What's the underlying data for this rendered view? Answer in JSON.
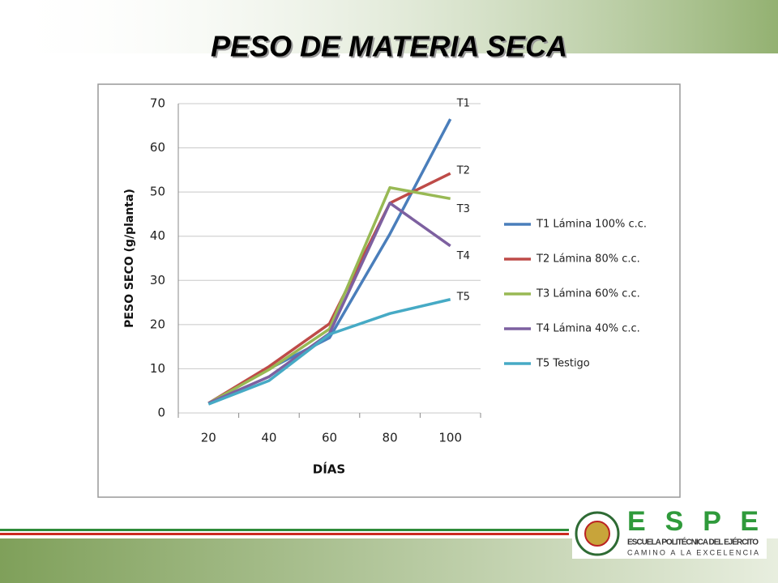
{
  "chart_data": {
    "type": "line",
    "title": "PESO DE MATERIA SECA",
    "x_label": "DÍAS",
    "y_label": "PESO SECO  (g/planta)",
    "categories": [
      20,
      40,
      60,
      80,
      100
    ],
    "series": [
      {
        "name": "T1 Lámina 100% c.c.",
        "label": "T1",
        "color": "#4a7ebb",
        "values": [
          2.2,
          10,
          17,
          40.5,
          66.5
        ]
      },
      {
        "name": "T2 Lámina 80% c.c.",
        "label": "T2",
        "color": "#be4b48",
        "values": [
          2.2,
          10.5,
          20.2,
          47.5,
          54.2
        ]
      },
      {
        "name": "T3 Lámina 60% c.c.",
        "label": "T3",
        "color": "#98b954",
        "values": [
          2.2,
          9.8,
          19,
          51,
          48.5
        ]
      },
      {
        "name": "T4 Lámina 40% c.c.",
        "label": "T4",
        "color": "#7d60a0",
        "values": [
          2.2,
          8.2,
          18,
          47.5,
          37.8
        ]
      },
      {
        "name": "T5 Testigo",
        "label": "T5",
        "color": "#46aac5",
        "values": [
          2,
          7.3,
          17.8,
          22.5,
          25.7
        ]
      }
    ],
    "ylim": [
      0,
      70
    ],
    "yticks": [
      0,
      10,
      20,
      30,
      40,
      50,
      60,
      70
    ],
    "grid": true,
    "legend": "right"
  },
  "footer": {
    "logo": "E S P E",
    "school": "ESCUELA POLITÉCNICA DEL EJÉRCITO",
    "motto": "CAMINO A LA EXCELENCIA"
  }
}
